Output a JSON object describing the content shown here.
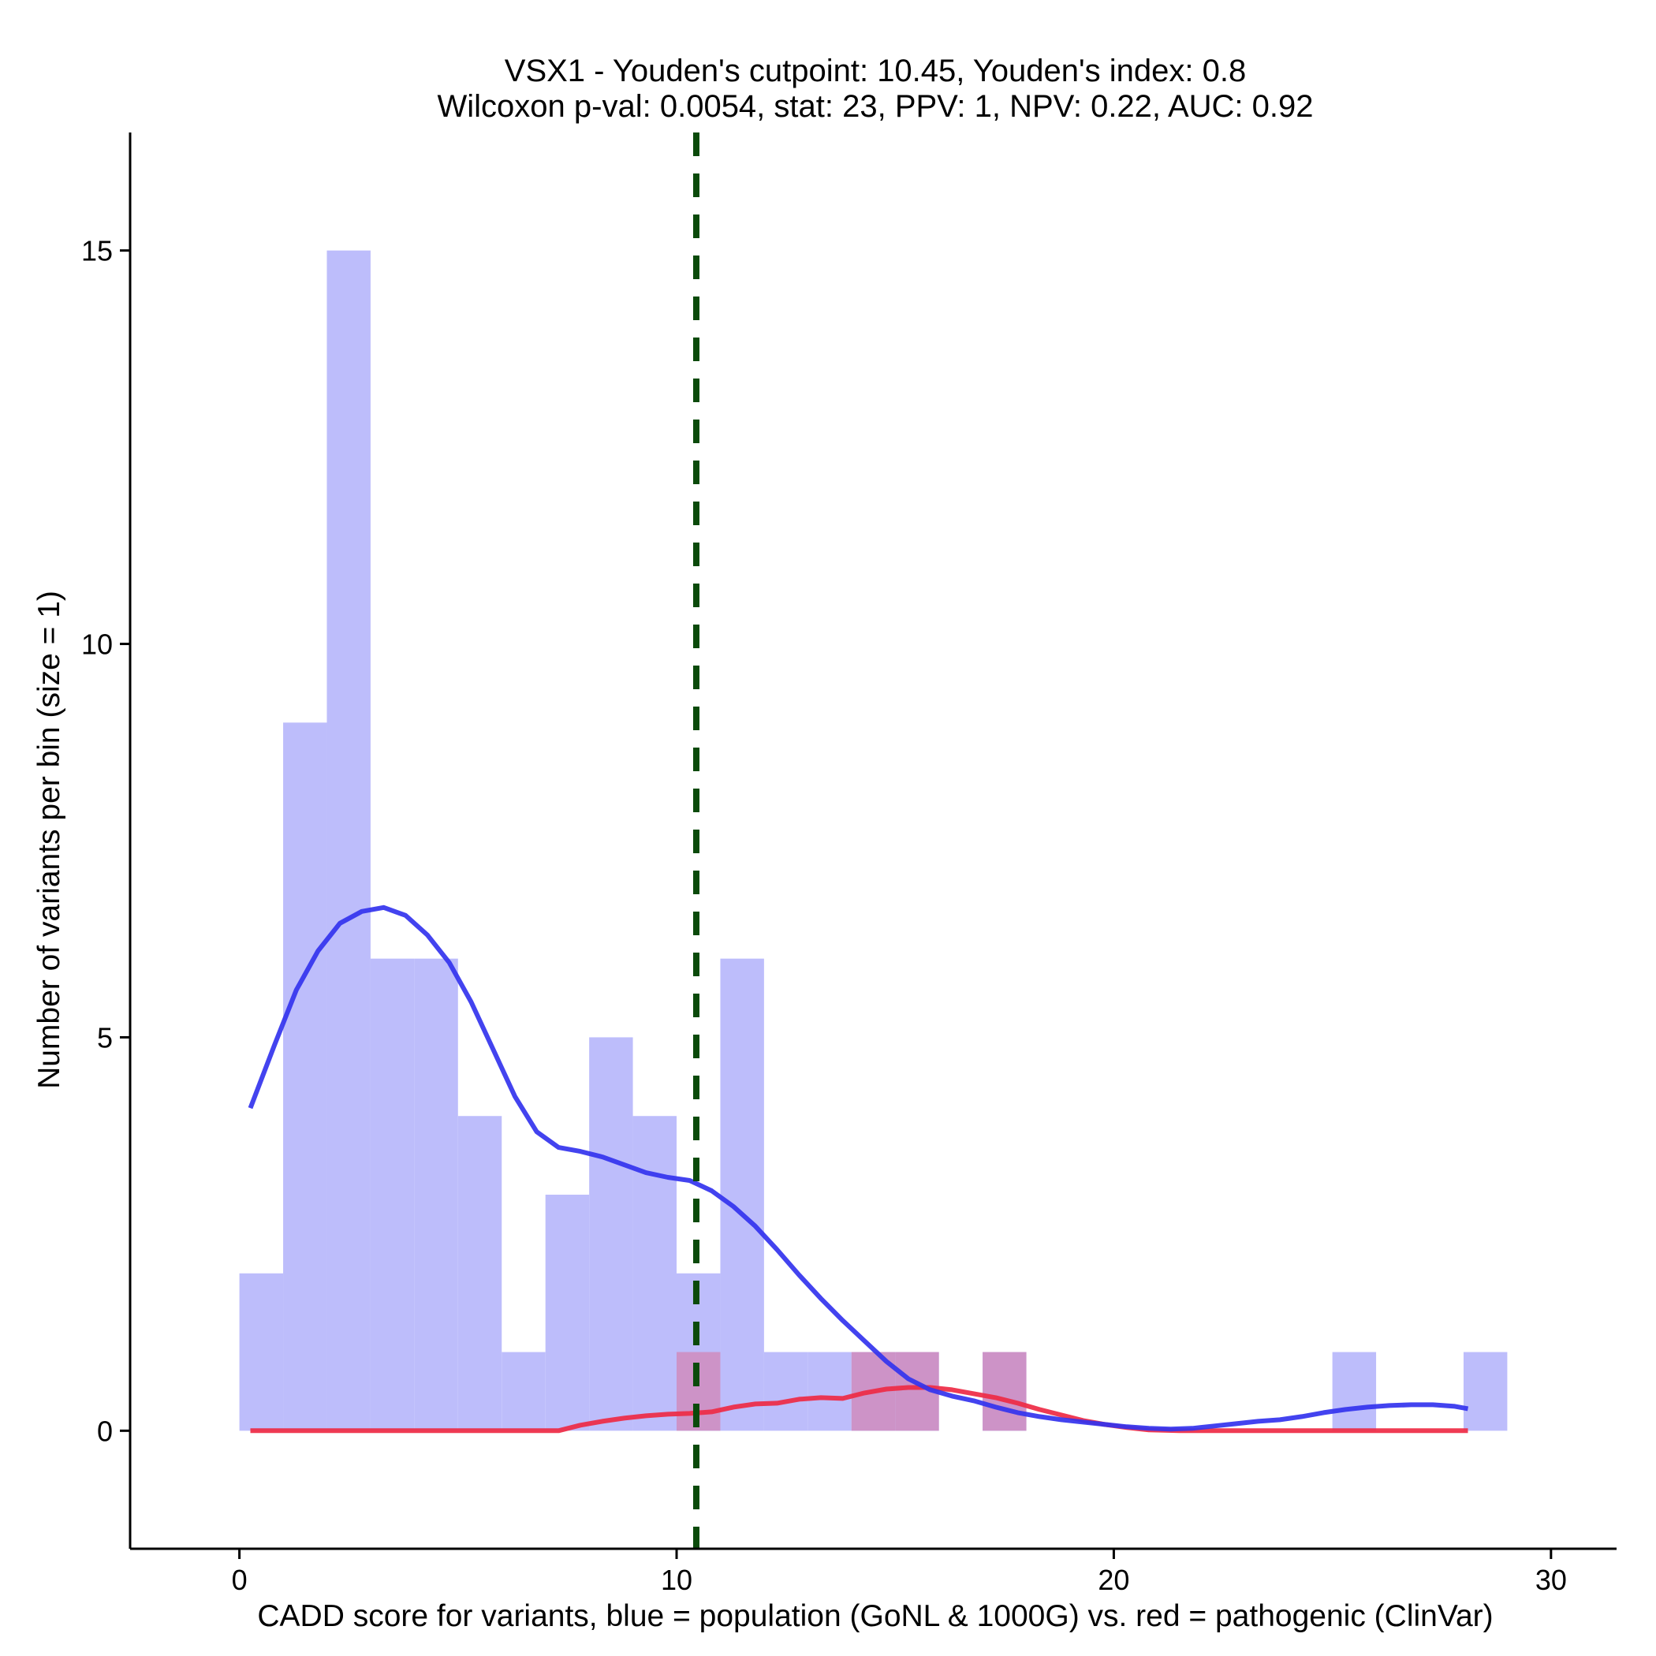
{
  "chart_data": {
    "type": "bar",
    "title_line1": "VSX1 - Youden's cutpoint: 10.45, Youden's index: 0.8",
    "title_line2": "Wilcoxon p-val: 0.0054, stat: 23, PPV: 1, NPV: 0.22, AUC: 0.92",
    "xlabel": "CADD score for variants, blue = population (GoNL & 1000G) vs. red = pathogenic (ClinVar)",
    "ylabel": "Number of variants per bin (size = 1)",
    "xlim": [
      -2.5,
      31.5
    ],
    "ylim": [
      -1.5,
      16.5
    ],
    "x_ticks": [
      0,
      10,
      20,
      30
    ],
    "y_ticks": [
      0,
      5,
      10,
      15
    ],
    "bin_width": 1,
    "cutpoint": 10.45,
    "colors": {
      "population_bar": "#bdbdfb",
      "pathogenic_bar": "#cd93c7",
      "population_line": "#3333ee",
      "pathogenic_line": "#ee2a44",
      "cutpoint_line": "#0b4a0b",
      "axis": "#000000"
    },
    "series": [
      {
        "name": "population",
        "bins": [
          {
            "x": 0,
            "count": 2
          },
          {
            "x": 1,
            "count": 9
          },
          {
            "x": 2,
            "count": 15
          },
          {
            "x": 3,
            "count": 6
          },
          {
            "x": 4,
            "count": 6
          },
          {
            "x": 5,
            "count": 4
          },
          {
            "x": 6,
            "count": 1
          },
          {
            "x": 7,
            "count": 3
          },
          {
            "x": 8,
            "count": 5
          },
          {
            "x": 9,
            "count": 4
          },
          {
            "x": 10,
            "count": 2
          },
          {
            "x": 11,
            "count": 6
          },
          {
            "x": 12,
            "count": 1
          },
          {
            "x": 13,
            "count": 1
          },
          {
            "x": 14,
            "count": 1
          },
          {
            "x": 15,
            "count": 1
          },
          {
            "x": 17,
            "count": 1
          },
          {
            "x": 25,
            "count": 1
          },
          {
            "x": 28,
            "count": 1
          }
        ],
        "density_x": [
          0.25,
          0.8,
          1.3,
          1.8,
          2.3,
          2.8,
          3.3,
          3.8,
          4.3,
          4.8,
          5.3,
          5.8,
          6.3,
          6.8,
          7.3,
          7.8,
          8.3,
          8.8,
          9.3,
          9.8,
          10.3,
          10.8,
          11.3,
          11.8,
          12.3,
          12.8,
          13.3,
          13.8,
          14.3,
          14.8,
          15.3,
          15.8,
          16.3,
          16.8,
          17.3,
          17.8,
          18.3,
          18.8,
          19.3,
          19.8,
          20.3,
          20.8,
          21.3,
          21.8,
          22.3,
          22.8,
          23.3,
          23.8,
          24.3,
          24.8,
          25.3,
          25.8,
          26.3,
          26.8,
          27.3,
          27.8,
          28.1
        ],
        "density_y": [
          4.1,
          4.9,
          5.6,
          6.1,
          6.45,
          6.6,
          6.65,
          6.55,
          6.3,
          5.95,
          5.45,
          4.85,
          4.25,
          3.8,
          3.6,
          3.55,
          3.48,
          3.38,
          3.28,
          3.22,
          3.18,
          3.05,
          2.85,
          2.6,
          2.3,
          1.98,
          1.68,
          1.4,
          1.14,
          0.88,
          0.66,
          0.52,
          0.44,
          0.38,
          0.3,
          0.23,
          0.18,
          0.14,
          0.11,
          0.08,
          0.05,
          0.03,
          0.02,
          0.03,
          0.06,
          0.09,
          0.12,
          0.14,
          0.18,
          0.23,
          0.27,
          0.3,
          0.32,
          0.33,
          0.33,
          0.31,
          0.28
        ]
      },
      {
        "name": "pathogenic",
        "bins": [
          {
            "x": 10,
            "count": 1
          },
          {
            "x": 14,
            "count": 1
          },
          {
            "x": 15,
            "count": 1
          },
          {
            "x": 17,
            "count": 1
          }
        ],
        "density_x": [
          0.25,
          2.0,
          4.0,
          6.0,
          7.3,
          7.8,
          8.3,
          8.8,
          9.3,
          9.8,
          10.3,
          10.8,
          11.3,
          11.8,
          12.3,
          12.8,
          13.3,
          13.8,
          14.3,
          14.8,
          15.3,
          15.8,
          16.3,
          16.8,
          17.3,
          17.8,
          18.3,
          18.8,
          19.3,
          19.8,
          20.3,
          20.8,
          21.5,
          23.0,
          25.0,
          27.0,
          28.1
        ],
        "density_y": [
          0,
          0,
          0,
          0,
          0,
          0.07,
          0.12,
          0.16,
          0.19,
          0.21,
          0.22,
          0.24,
          0.3,
          0.34,
          0.35,
          0.4,
          0.42,
          0.41,
          0.48,
          0.53,
          0.55,
          0.55,
          0.52,
          0.47,
          0.42,
          0.35,
          0.27,
          0.2,
          0.13,
          0.08,
          0.04,
          0.01,
          0,
          0,
          0,
          0,
          0
        ]
      }
    ]
  }
}
